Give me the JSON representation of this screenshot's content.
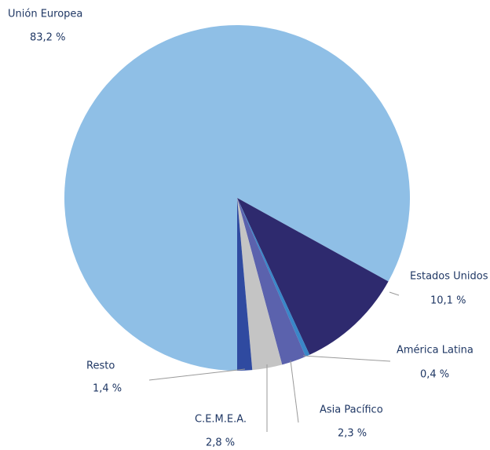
{
  "chart_data": {
    "type": "pie",
    "categories": [
      "Unión Europea",
      "Estados Unidos",
      "América Latina",
      "Asia Pacífico",
      "C.E.M.E.A.",
      "Resto"
    ],
    "values": [
      83.2,
      10.1,
      0.4,
      2.3,
      2.8,
      1.4
    ],
    "value_labels": [
      "83,2 %",
      "10,1 %",
      "0,4 %",
      "2,3 %",
      "2,8 %",
      "1,4 %"
    ],
    "colors": [
      "#8fbfe6",
      "#2e2a6e",
      "#3a87c8",
      "#5b62ad",
      "#c4c4c4",
      "#2f4aa0"
    ]
  }
}
